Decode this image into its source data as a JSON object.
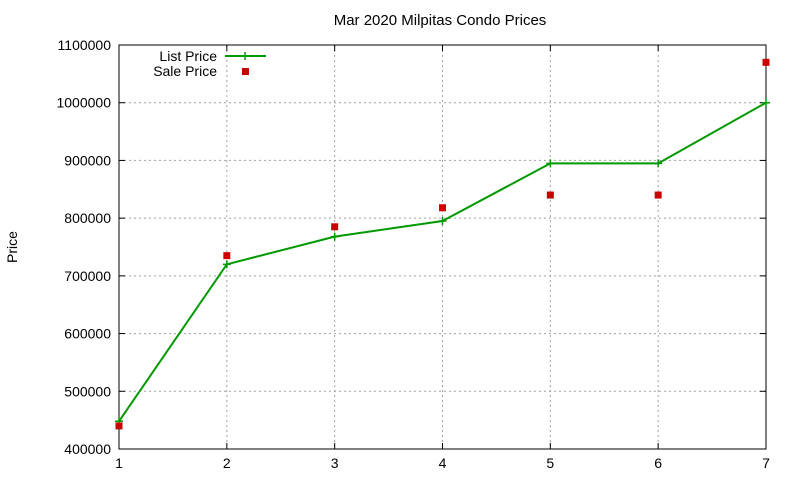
{
  "chart_data": {
    "type": "line",
    "title": "Mar 2020 Milpitas Condo Prices",
    "xlabel": "",
    "ylabel": "Price",
    "xlim": [
      1,
      7
    ],
    "ylim": [
      400000,
      1100000
    ],
    "xticks": [
      "1",
      "2",
      "3",
      "4",
      "5",
      "6",
      "7"
    ],
    "yticks": [
      "400000",
      "500000",
      "600000",
      "700000",
      "800000",
      "900000",
      "1000000",
      "1100000"
    ],
    "grid": true,
    "legend_position": "top-left",
    "x": [
      1,
      2,
      3,
      4,
      5,
      6,
      7
    ],
    "series": [
      {
        "name": "List Price",
        "style": "line-with-plus-markers",
        "color": "#009900",
        "values": [
          448000,
          720000,
          768000,
          795000,
          895000,
          895000,
          1000000
        ]
      },
      {
        "name": "Sale Price",
        "style": "square-markers",
        "color": "#cc0000",
        "values": [
          440000,
          735000,
          785000,
          818000,
          840000,
          840000,
          1070000
        ]
      }
    ]
  }
}
